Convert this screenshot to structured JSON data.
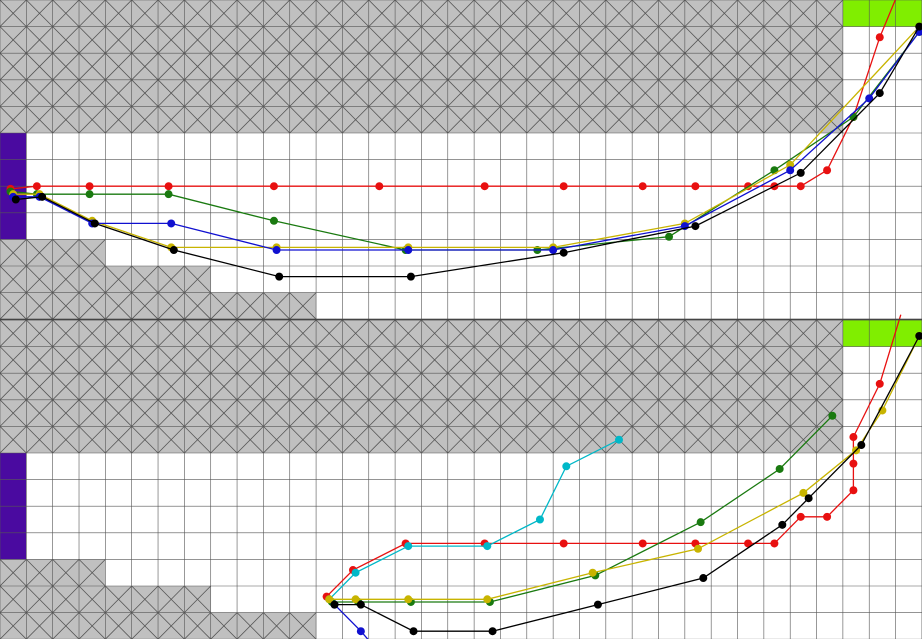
{
  "colors": {
    "background": "#ffffff",
    "grid_line": "#555555",
    "obstacle_fill": "#c0c0c0",
    "obstacle_cross": "#555555",
    "start_fill": "#4a0aa0",
    "goal_fill": "#80ee00",
    "divider": "#444444"
  },
  "grid": {
    "columns": 35,
    "rows_per_panel": 12,
    "cell_units": 1
  },
  "panels": [
    {
      "id": "top",
      "start_cells": [
        [
          0,
          5
        ],
        [
          0,
          6
        ],
        [
          0,
          7
        ],
        [
          0,
          8
        ]
      ],
      "goal_cells": [
        [
          32,
          0
        ],
        [
          33,
          0
        ],
        [
          34,
          0
        ]
      ],
      "obstacle_rows": [
        {
          "row": 0,
          "from": 0,
          "to": 31
        },
        {
          "row": 1,
          "from": 0,
          "to": 31
        },
        {
          "row": 2,
          "from": 0,
          "to": 31
        },
        {
          "row": 3,
          "from": 0,
          "to": 31
        },
        {
          "row": 4,
          "from": 0,
          "to": 31
        },
        {
          "row": 9,
          "from": 0,
          "to": 3
        },
        {
          "row": 10,
          "from": 0,
          "to": 7
        },
        {
          "row": 11,
          "from": 0,
          "to": 11
        }
      ],
      "paths": [
        {
          "color": "#e81010",
          "points": [
            [
              0.4,
              7.1
            ],
            [
              1.4,
              7.0
            ],
            [
              3.4,
              7.0
            ],
            [
              6.4,
              7.0
            ],
            [
              10.4,
              7.0
            ],
            [
              14.4,
              7.0
            ],
            [
              18.4,
              7.0
            ],
            [
              21.4,
              7.0
            ],
            [
              24.4,
              7.0
            ],
            [
              26.4,
              7.0
            ],
            [
              28.4,
              7.0
            ],
            [
              29.4,
              7.0
            ],
            [
              30.4,
              7.0
            ],
            [
              31.4,
              6.4
            ],
            [
              32.4,
              4.4
            ],
            [
              33.4,
              1.4
            ],
            [
              34.2,
              -0.5
            ]
          ]
        },
        {
          "color": "#1a7a10",
          "points": [
            [
              0.4,
              7.2
            ],
            [
              1.4,
              7.3
            ],
            [
              3.4,
              7.3
            ],
            [
              6.4,
              7.3
            ],
            [
              10.4,
              8.3
            ],
            [
              15.4,
              9.4
            ],
            [
              20.4,
              9.4
            ],
            [
              25.4,
              8.9
            ],
            [
              29.4,
              6.4
            ],
            [
              32.4,
              4.4
            ],
            [
              34.9,
              1.2
            ]
          ]
        },
        {
          "color": "#c8b400",
          "points": [
            [
              0.5,
              7.3
            ],
            [
              1.5,
              7.3
            ],
            [
              3.5,
              8.3
            ],
            [
              6.5,
              9.3
            ],
            [
              10.5,
              9.3
            ],
            [
              15.5,
              9.3
            ],
            [
              21.0,
              9.3
            ],
            [
              26.0,
              8.4
            ],
            [
              30.0,
              6.2
            ],
            [
              34.9,
              1.0
            ]
          ]
        },
        {
          "color": "#1010d0",
          "points": [
            [
              0.5,
              7.4
            ],
            [
              1.5,
              7.4
            ],
            [
              3.5,
              8.4
            ],
            [
              6.5,
              8.4
            ],
            [
              10.5,
              9.4
            ],
            [
              15.5,
              9.4
            ],
            [
              21.0,
              9.4
            ],
            [
              26.0,
              8.5
            ],
            [
              30.0,
              6.4
            ],
            [
              33.0,
              3.7
            ],
            [
              34.9,
              1.2
            ]
          ]
        },
        {
          "color": "#000000",
          "points": [
            [
              0.6,
              7.5
            ],
            [
              1.6,
              7.4
            ],
            [
              3.6,
              8.4
            ],
            [
              6.6,
              9.4
            ],
            [
              10.6,
              10.4
            ],
            [
              15.6,
              10.4
            ],
            [
              21.4,
              9.5
            ],
            [
              26.4,
              8.5
            ],
            [
              30.4,
              6.5
            ],
            [
              33.4,
              3.5
            ],
            [
              34.9,
              1.0
            ]
          ]
        }
      ]
    },
    {
      "id": "bottom",
      "start_cells": [
        [
          0,
          5
        ],
        [
          0,
          6
        ],
        [
          0,
          7
        ],
        [
          0,
          8
        ]
      ],
      "goal_cells": [
        [
          32,
          0
        ],
        [
          33,
          0
        ],
        [
          34,
          0
        ]
      ],
      "obstacle_rows": [
        {
          "row": 0,
          "from": 0,
          "to": 31
        },
        {
          "row": 1,
          "from": 0,
          "to": 31
        },
        {
          "row": 2,
          "from": 0,
          "to": 31
        },
        {
          "row": 3,
          "from": 0,
          "to": 31
        },
        {
          "row": 4,
          "from": 0,
          "to": 31
        },
        {
          "row": 9,
          "from": 0,
          "to": 3
        },
        {
          "row": 10,
          "from": 0,
          "to": 7
        },
        {
          "row": 11,
          "from": 0,
          "to": 11
        }
      ],
      "paths": [
        {
          "color": "#e81010",
          "points": [
            [
              12.4,
              10.4
            ],
            [
              13.4,
              9.4
            ],
            [
              15.4,
              8.4
            ],
            [
              18.4,
              8.4
            ],
            [
              21.4,
              8.4
            ],
            [
              24.4,
              8.4
            ],
            [
              26.4,
              8.4
            ],
            [
              28.4,
              8.4
            ],
            [
              29.4,
              8.4
            ],
            [
              30.4,
              7.4
            ],
            [
              31.4,
              7.4
            ],
            [
              32.4,
              6.4
            ],
            [
              32.4,
              5.4
            ],
            [
              32.4,
              4.4
            ],
            [
              33.4,
              2.4
            ],
            [
              34.2,
              -0.2
            ]
          ]
        },
        {
          "color": "#00b8c8",
          "points": [
            [
              12.5,
              10.5
            ],
            [
              13.5,
              9.5
            ],
            [
              15.5,
              8.5
            ],
            [
              18.5,
              8.5
            ],
            [
              20.5,
              7.5
            ],
            [
              21.5,
              5.5
            ],
            [
              23.5,
              4.5
            ]
          ]
        },
        {
          "color": "#1a7a10",
          "points": [
            [
              12.6,
              10.6
            ],
            [
              13.6,
              10.6
            ],
            [
              15.6,
              10.6
            ],
            [
              18.6,
              10.6
            ],
            [
              22.6,
              9.6
            ],
            [
              26.6,
              7.6
            ],
            [
              29.6,
              5.6
            ],
            [
              31.6,
              3.6
            ]
          ]
        },
        {
          "color": "#c8b400",
          "points": [
            [
              12.5,
              10.5
            ],
            [
              13.5,
              10.5
            ],
            [
              15.5,
              10.5
            ],
            [
              18.5,
              10.5
            ],
            [
              22.5,
              9.5
            ],
            [
              26.5,
              8.6
            ],
            [
              30.5,
              6.5
            ],
            [
              32.5,
              4.9
            ],
            [
              33.5,
              3.4
            ],
            [
              34.9,
              0.6
            ]
          ]
        },
        {
          "color": "#1010d0",
          "points": [
            [
              12.7,
              10.7
            ],
            [
              13.7,
              11.7
            ],
            [
              14.4,
              12.5
            ]
          ]
        },
        {
          "color": "#000000",
          "points": [
            [
              12.7,
              10.7
            ],
            [
              13.7,
              10.7
            ],
            [
              15.7,
              11.7
            ],
            [
              18.7,
              11.7
            ],
            [
              22.7,
              10.7
            ],
            [
              26.7,
              9.7
            ],
            [
              29.7,
              7.7
            ],
            [
              30.7,
              6.7
            ],
            [
              32.7,
              4.7
            ],
            [
              34.9,
              0.6
            ]
          ]
        }
      ]
    }
  ]
}
